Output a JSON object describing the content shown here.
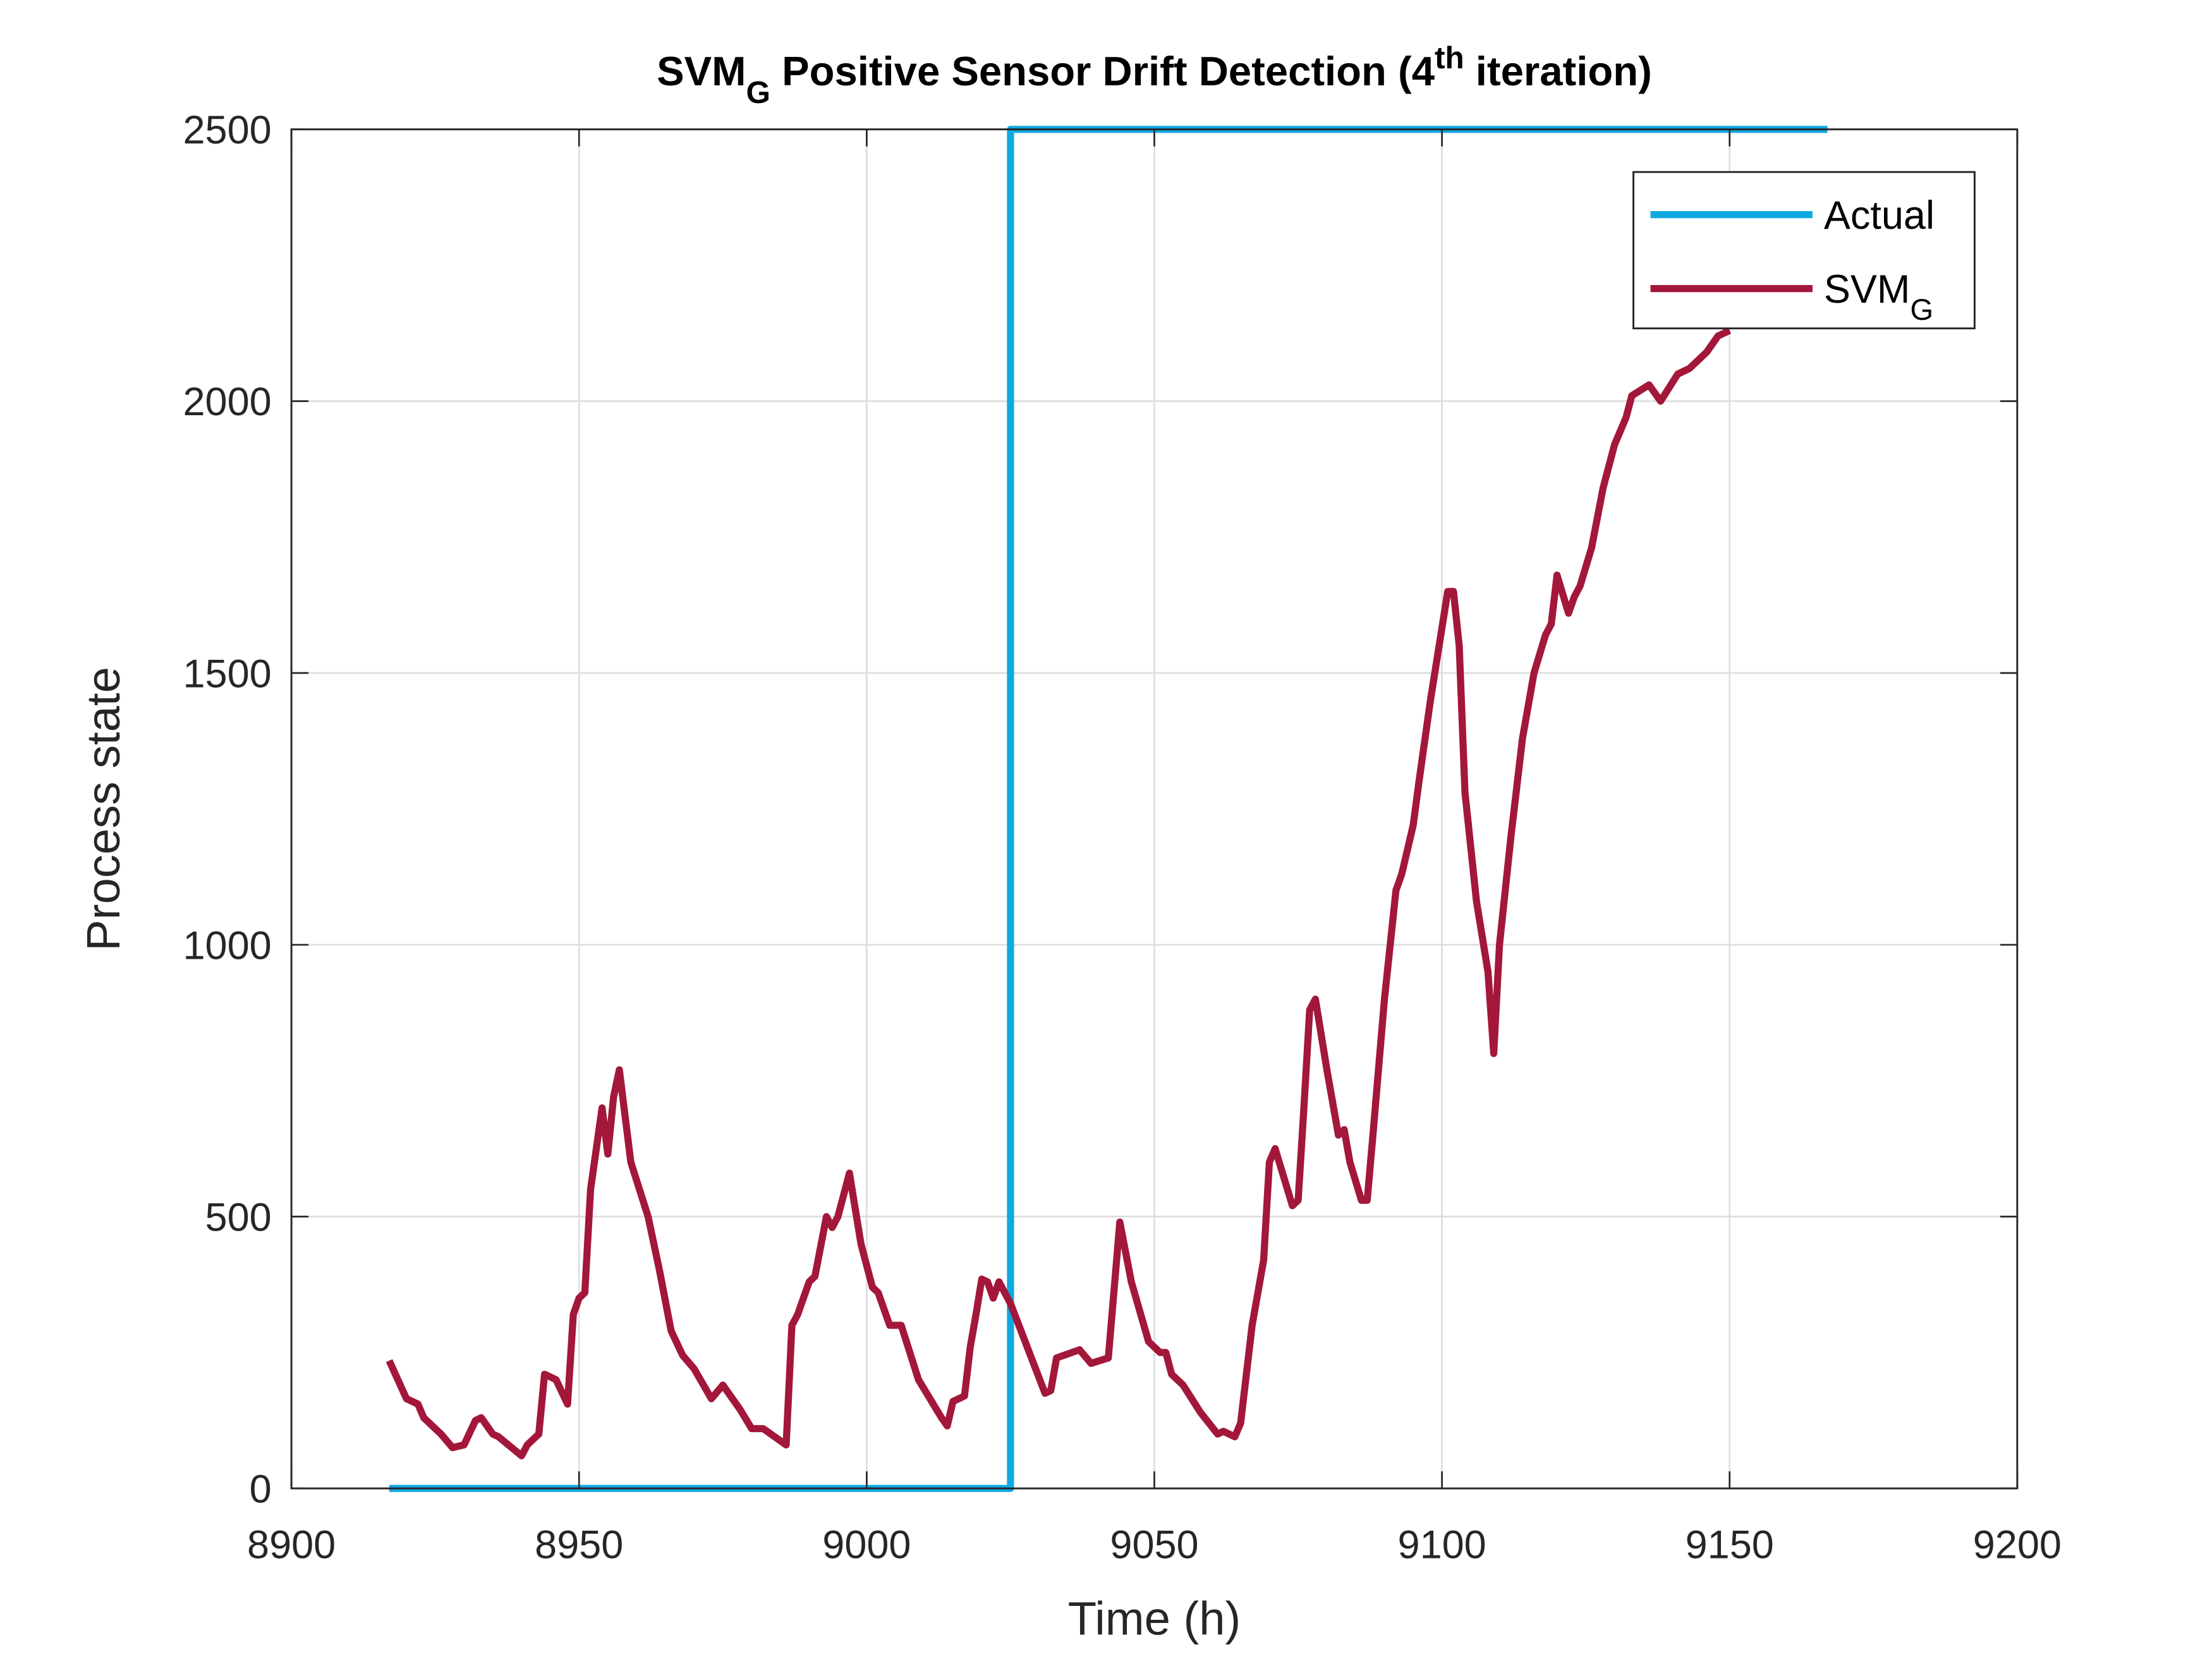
{
  "chart_data": {
    "type": "line",
    "title": [
      "SVM",
      "G",
      " Positive Sensor Drift Detection (4",
      "th",
      " iteration)"
    ],
    "title_styles": [
      "normal",
      "sub",
      "normal",
      "sup",
      "normal"
    ],
    "x_label": "Time (h)",
    "y_label": "Process state",
    "xlim": [
      8900,
      9200
    ],
    "xticks": [
      8900,
      8950,
      9000,
      9050,
      9100,
      9150,
      9200
    ],
    "ylim": [
      0,
      2500
    ],
    "yticks": [
      0,
      500,
      1000,
      1500,
      2000,
      2500
    ],
    "grid": true,
    "legend_position": "northeast",
    "series": [
      {
        "name": "Actual",
        "color": "#0fa9e2",
        "x": [
          8917,
          9025,
          9025,
          9167
        ],
        "values": [
          0,
          0,
          2500,
          2500
        ]
      },
      {
        "name": "SVM",
        "name_subscript": "G",
        "color": "#a3173a",
        "x": [
          8917,
          8920,
          8922,
          8923,
          8926,
          8928,
          8930,
          8932,
          8933,
          8935,
          8936,
          8940,
          8941,
          8943,
          8944,
          8946,
          8948,
          8949,
          8950,
          8951,
          8952,
          8954,
          8955,
          8956,
          8957,
          8959,
          8962,
          8964,
          8966,
          8968,
          8970,
          8973,
          8975,
          8978,
          8980,
          8982,
          8986,
          8987,
          8988,
          8990,
          8991,
          8993,
          8994,
          8995,
          8997,
          8999,
          9001,
          9002,
          9004,
          9006,
          9009,
          9013,
          9014,
          9015,
          9017,
          9018,
          9019,
          9020,
          9021,
          9022,
          9023,
          9025,
          9031,
          9032,
          9033,
          9037,
          9039,
          9042,
          9044,
          9046,
          9049,
          9051,
          9052,
          9053,
          9055,
          9058,
          9061,
          9062,
          9064,
          9065,
          9067,
          9069,
          9070,
          9071,
          9072,
          9074,
          9075,
          9076,
          9077,
          9078,
          9080,
          9082,
          9083,
          9084,
          9086,
          9087,
          9088,
          9090,
          9092,
          9093,
          9095,
          9096,
          9098,
          9101,
          9102,
          9103,
          9104,
          9106,
          9108,
          9109,
          9110,
          9112,
          9114,
          9116,
          9118,
          9119,
          9120,
          9122,
          9123,
          9124,
          9126,
          9128,
          9130,
          9132,
          9133,
          9136,
          9138,
          9141,
          9143,
          9146,
          9148,
          9150
        ],
        "values": [
          235,
          165,
          155,
          130,
          100,
          75,
          80,
          125,
          130,
          100,
          95,
          60,
          80,
          100,
          210,
          200,
          155,
          320,
          350,
          360,
          550,
          700,
          615,
          720,
          770,
          600,
          500,
          400,
          290,
          245,
          220,
          165,
          190,
          145,
          110,
          110,
          80,
          300,
          320,
          380,
          390,
          500,
          480,
          500,
          580,
          450,
          370,
          360,
          300,
          300,
          200,
          130,
          115,
          160,
          170,
          260,
          320,
          385,
          380,
          350,
          380,
          340,
          175,
          180,
          240,
          255,
          230,
          240,
          490,
          380,
          270,
          250,
          250,
          210,
          190,
          140,
          100,
          105,
          95,
          120,
          300,
          420,
          600,
          625,
          590,
          520,
          530,
          700,
          880,
          900,
          770,
          650,
          660,
          600,
          530,
          530,
          650,
          900,
          1100,
          1130,
          1220,
          1300,
          1450,
          1650,
          1650,
          1550,
          1280,
          1080,
          950,
          800,
          1000,
          1200,
          1380,
          1500,
          1570,
          1590,
          1680,
          1610,
          1640,
          1660,
          1730,
          1840,
          1920,
          1970,
          2010,
          2030,
          2000,
          2050,
          2060,
          2090,
          2120,
          2130
        ]
      }
    ]
  }
}
